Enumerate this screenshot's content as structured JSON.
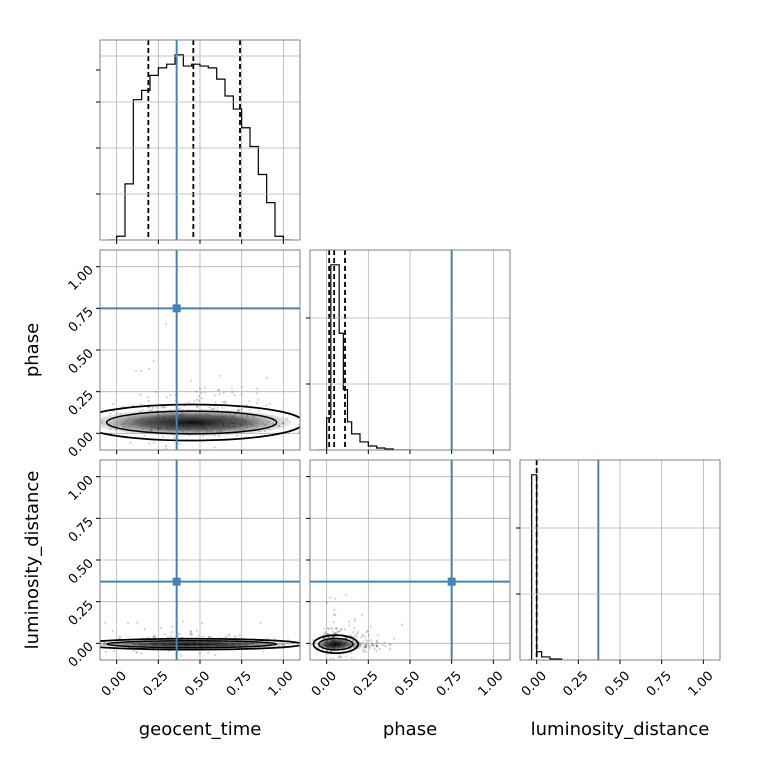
{
  "chart_data": {
    "type": "corner",
    "parameters": [
      "geocent_time",
      "phase",
      "luminosity_distance"
    ],
    "truths": {
      "geocent_time": 0.36,
      "phase": 0.75,
      "luminosity_distance": 0.37
    },
    "truth_color": "#4682b4",
    "axis_range": [
      -0.1,
      1.1
    ],
    "tick_values": [
      0.0,
      0.25,
      0.5,
      0.75,
      1.0
    ],
    "tick_labels": [
      "0.00",
      "0.25",
      "0.50",
      "0.75",
      "1.00"
    ],
    "grid": true,
    "histograms": [
      {
        "parameter": "geocent_time",
        "bin_edges": [
          -0.05,
          0.0,
          0.05,
          0.1,
          0.15,
          0.2,
          0.25,
          0.3,
          0.35,
          0.4,
          0.45,
          0.5,
          0.55,
          0.6,
          0.65,
          0.7,
          0.75,
          0.8,
          0.85,
          0.9,
          0.95,
          1.0,
          1.05
        ],
        "counts": [
          0.0,
          0.02,
          0.3,
          0.75,
          0.8,
          0.88,
          0.92,
          0.94,
          0.99,
          0.93,
          0.94,
          0.93,
          0.92,
          0.86,
          0.77,
          0.7,
          0.6,
          0.5,
          0.35,
          0.2,
          0.02,
          0.0
        ],
        "quantiles": [
          0.19,
          0.46,
          0.74
        ]
      },
      {
        "parameter": "phase",
        "bin_edges": [
          -0.05,
          0.0,
          0.025,
          0.05,
          0.075,
          0.1,
          0.125,
          0.15,
          0.2,
          0.25,
          0.3,
          0.35,
          0.4,
          0.5
        ],
        "counts": [
          0.0,
          0.16,
          0.92,
          0.92,
          0.58,
          0.3,
          0.14,
          0.08,
          0.04,
          0.02,
          0.01,
          0.005,
          0.0
        ],
        "quantiles": [
          0.015,
          0.045,
          0.11
        ]
      },
      {
        "parameter": "luminosity_distance",
        "bin_edges": [
          -0.05,
          -0.03,
          0.0,
          0.03,
          0.08,
          0.15
        ],
        "counts": [
          0.0,
          0.9,
          0.04,
          0.015,
          0.005
        ],
        "quantiles": [
          0.0
        ]
      }
    ],
    "contours": [
      {
        "x": "geocent_time",
        "y": "phase",
        "center": [
          0.45,
          0.065
        ],
        "sigma": [
          0.3,
          0.04
        ]
      },
      {
        "x": "geocent_time",
        "y": "luminosity_distance",
        "center": [
          0.45,
          -0.005
        ],
        "sigma": [
          0.3,
          0.012
        ]
      },
      {
        "x": "phase",
        "y": "luminosity_distance",
        "center": [
          0.055,
          -0.005
        ],
        "sigma": [
          0.06,
          0.02
        ]
      }
    ]
  }
}
